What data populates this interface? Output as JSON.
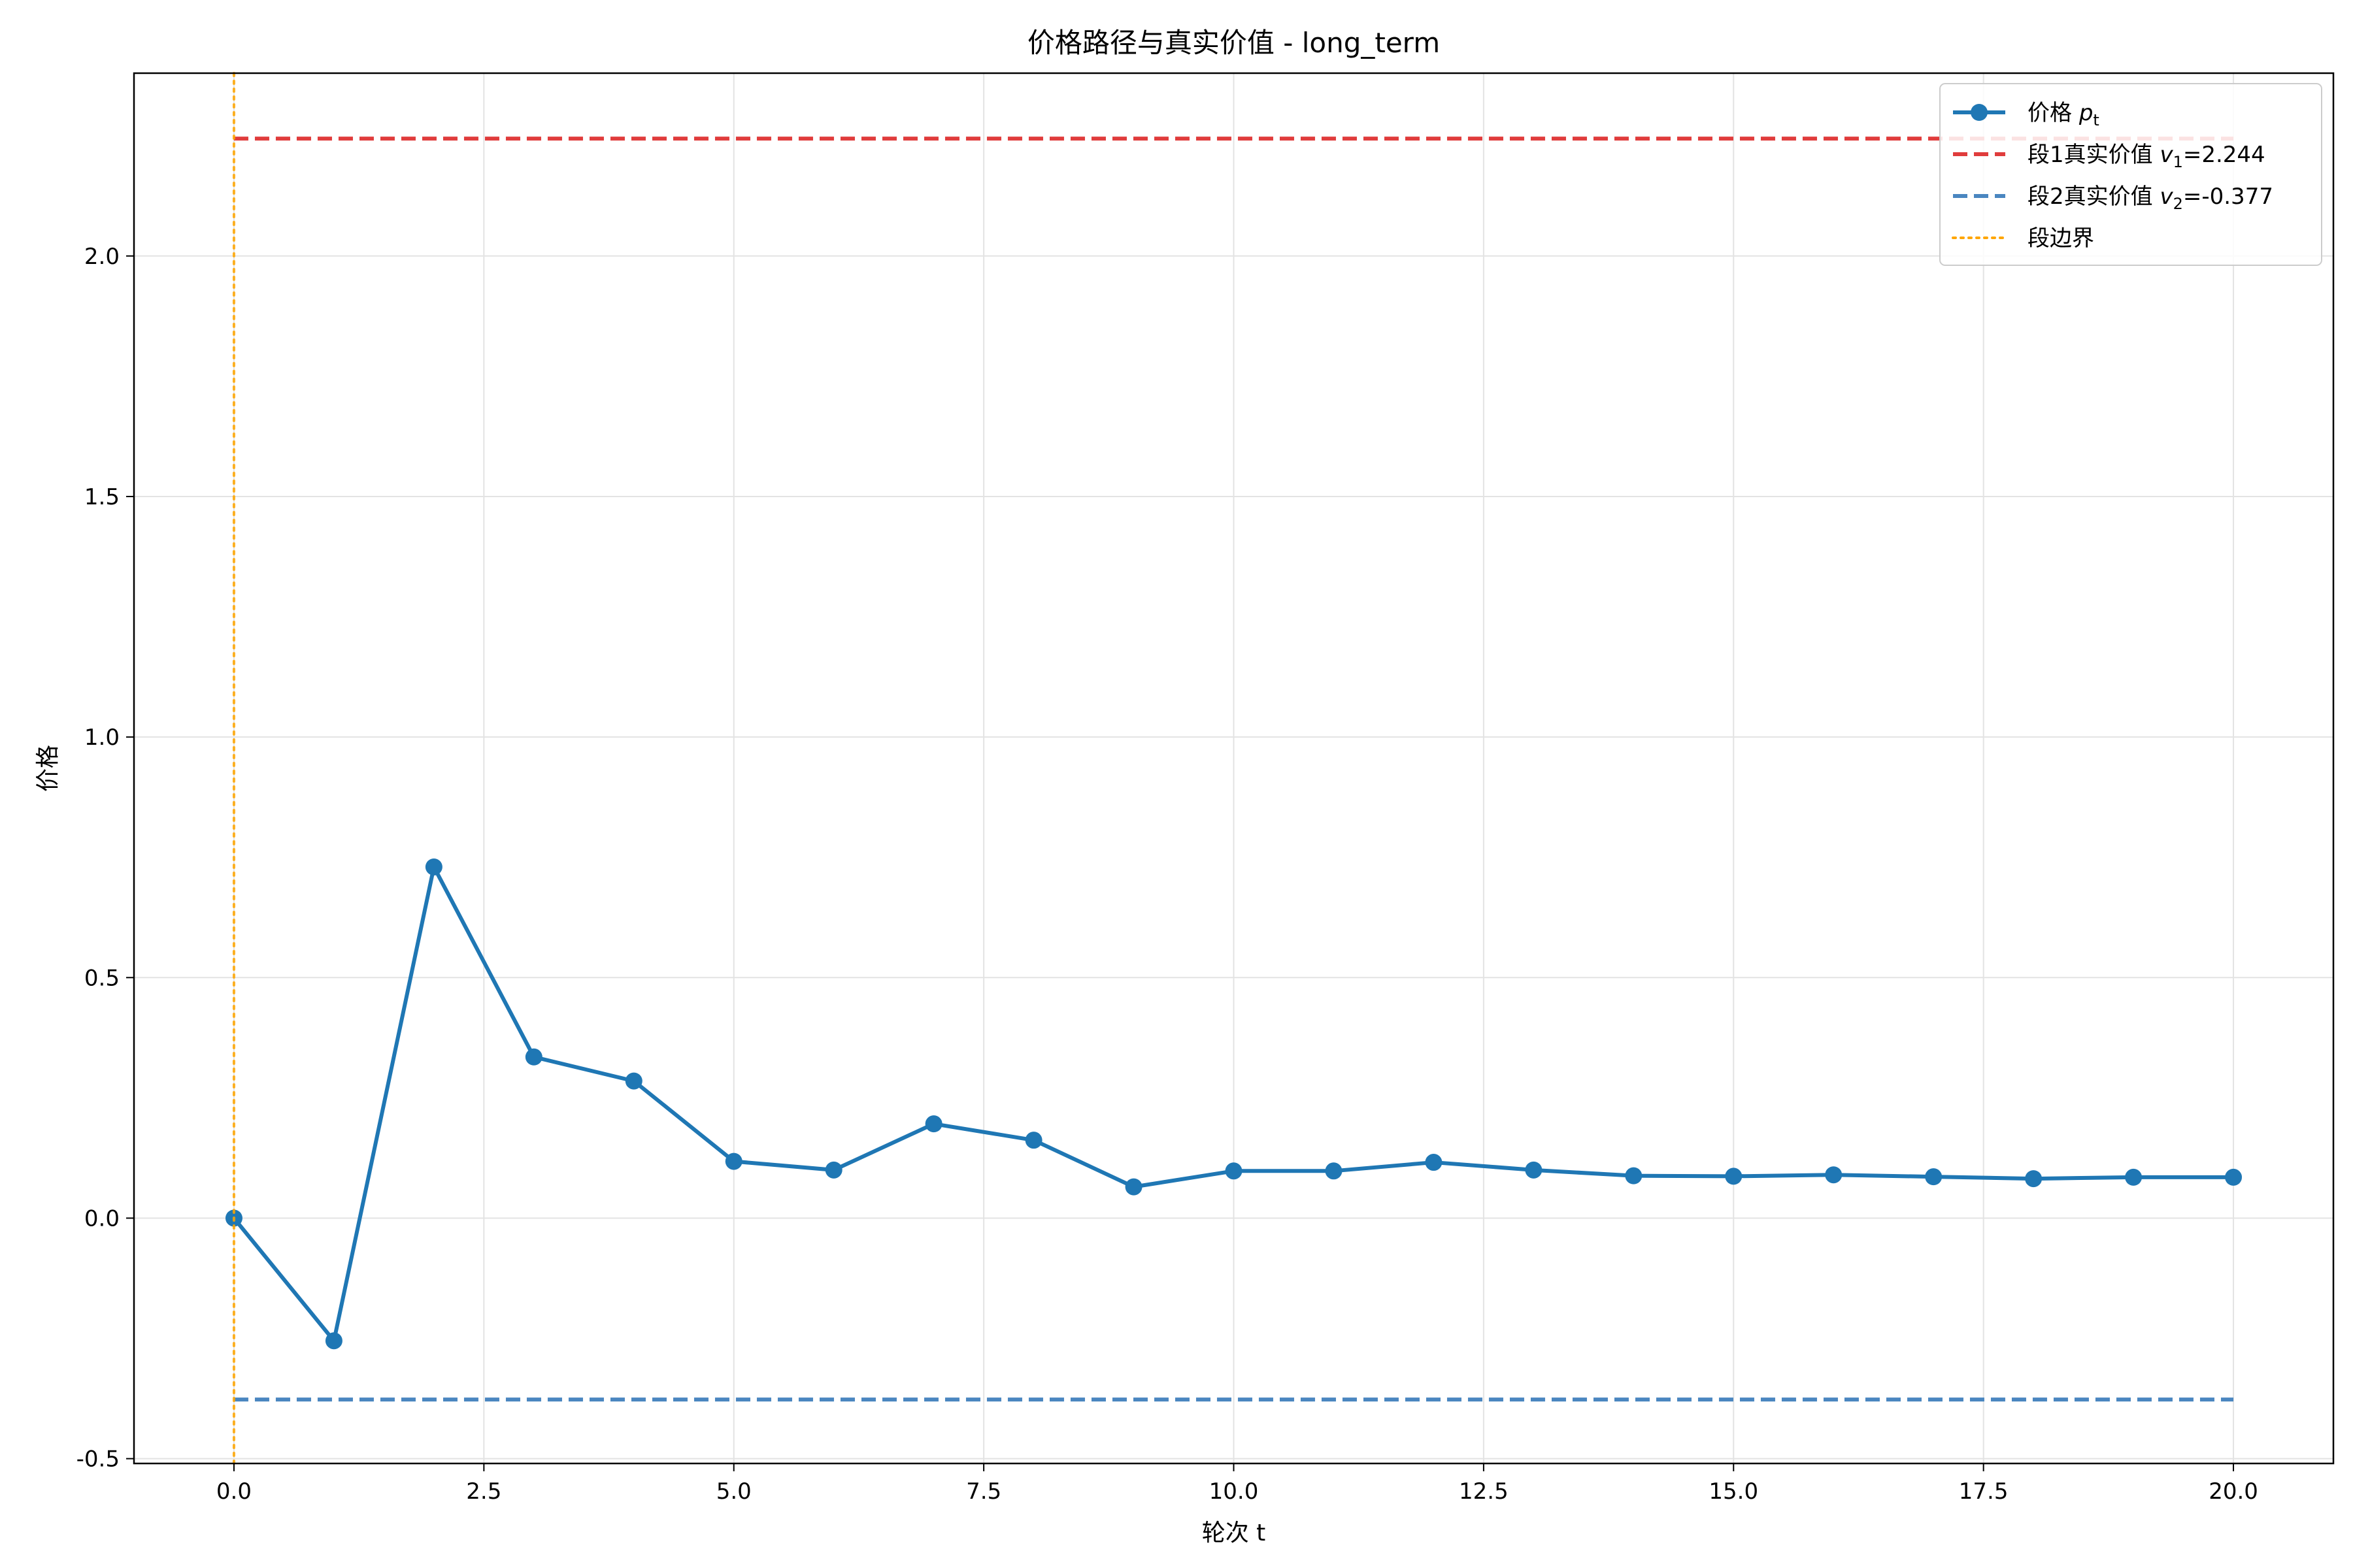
{
  "chart_data": {
    "type": "line",
    "title": "价格路径与真实价值 - long_term",
    "xlabel": "轮次 t",
    "ylabel": "价格",
    "xlim": [
      -1.0,
      21.0
    ],
    "ylim": [
      -0.51,
      2.38
    ],
    "x_ticks": [
      0.0,
      2.5,
      5.0,
      7.5,
      10.0,
      12.5,
      15.0,
      17.5,
      20.0
    ],
    "x_tick_labels": [
      "0.0",
      "2.5",
      "5.0",
      "7.5",
      "10.0",
      "12.5",
      "15.0",
      "17.5",
      "20.0"
    ],
    "y_ticks": [
      -0.5,
      0.0,
      0.5,
      1.0,
      1.5,
      2.0
    ],
    "y_tick_labels": [
      "-0.5",
      "0.0",
      "0.5",
      "1.0",
      "1.5",
      "2.0"
    ],
    "grid": true,
    "legend_position": "top-right",
    "series": [
      {
        "name": "价格 p_t",
        "legend_main": "价格 ",
        "legend_math": "p",
        "legend_sub": "t",
        "legend_rest": "",
        "style": "solid-marker",
        "color": "#1f77b4",
        "x": [
          0,
          1,
          2,
          3,
          4,
          5,
          6,
          7,
          8,
          9,
          10,
          11,
          12,
          13,
          14,
          15,
          16,
          17,
          18,
          19,
          20
        ],
        "y": [
          0.0,
          -0.255,
          0.73,
          0.335,
          0.285,
          0.118,
          0.1,
          0.196,
          0.162,
          0.065,
          0.098,
          0.098,
          0.116,
          0.1,
          0.088,
          0.087,
          0.09,
          0.086,
          0.082,
          0.085,
          0.085
        ]
      },
      {
        "name": "段1真实价值 v_1=2.244",
        "legend_main": "段1真实价值 ",
        "legend_math": "v",
        "legend_sub": "1",
        "legend_rest": "=2.244",
        "style": "dashed",
        "color": "#e03c3c",
        "x": [
          0,
          20
        ],
        "y": [
          2.244,
          2.244
        ]
      },
      {
        "name": "段2真实价值 v_2=-0.377",
        "legend_main": "段2真实价值 ",
        "legend_math": "v",
        "legend_sub": "2",
        "legend_rest": "=-0.377",
        "style": "dashed",
        "color": "#4a86c0",
        "x": [
          0,
          20
        ],
        "y": [
          -0.377,
          -0.377
        ]
      },
      {
        "name": "段边界",
        "legend_main": "段边界",
        "legend_math": "",
        "legend_sub": "",
        "legend_rest": "",
        "style": "dotted-vertical",
        "color": "#ffa500",
        "x": [
          0,
          0
        ],
        "y": [
          -0.51,
          2.38
        ]
      }
    ]
  }
}
